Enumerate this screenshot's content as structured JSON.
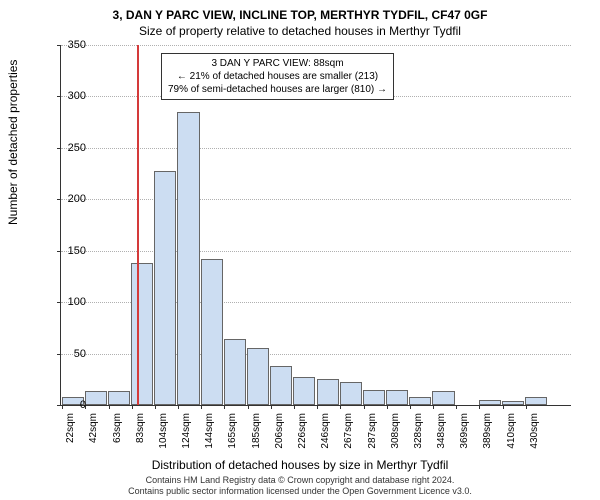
{
  "title_line1": "3, DAN Y PARC VIEW, INCLINE TOP, MERTHYR TYDFIL, CF47 0GF",
  "title_line2": "Size of property relative to detached houses in Merthyr Tydfil",
  "ylabel": "Number of detached properties",
  "xlabel": "Distribution of detached houses by size in Merthyr Tydfil",
  "footer_line1": "Contains HM Land Registry data © Crown copyright and database right 2024.",
  "footer_line2": "Contains public sector information licensed under the Open Government Licence v3.0.",
  "annotation": {
    "line1": "3 DAN Y PARC VIEW: 88sqm",
    "line2": "← 21% of detached houses are smaller (213)",
    "line3": "79% of semi-detached houses are larger (810) →"
  },
  "chart": {
    "type": "histogram",
    "ylim": [
      0,
      350
    ],
    "ytick_step": 50,
    "bar_fill": "#ccddf2",
    "bar_stroke": "#666666",
    "grid_color": "#b0b0b0",
    "ref_line_color": "#d43a3a",
    "ref_line_x_value": 88,
    "background_color": "#ffffff",
    "x_tick_labels": [
      "22sqm",
      "42sqm",
      "63sqm",
      "83sqm",
      "104sqm",
      "124sqm",
      "144sqm",
      "165sqm",
      "185sqm",
      "206sqm",
      "226sqm",
      "246sqm",
      "267sqm",
      "287sqm",
      "308sqm",
      "328sqm",
      "348sqm",
      "369sqm",
      "389sqm",
      "410sqm",
      "430sqm"
    ],
    "values": [
      8,
      14,
      14,
      138,
      228,
      285,
      142,
      64,
      55,
      38,
      27,
      25,
      22,
      15,
      15,
      8,
      14,
      0,
      5,
      4,
      8,
      0
    ]
  }
}
